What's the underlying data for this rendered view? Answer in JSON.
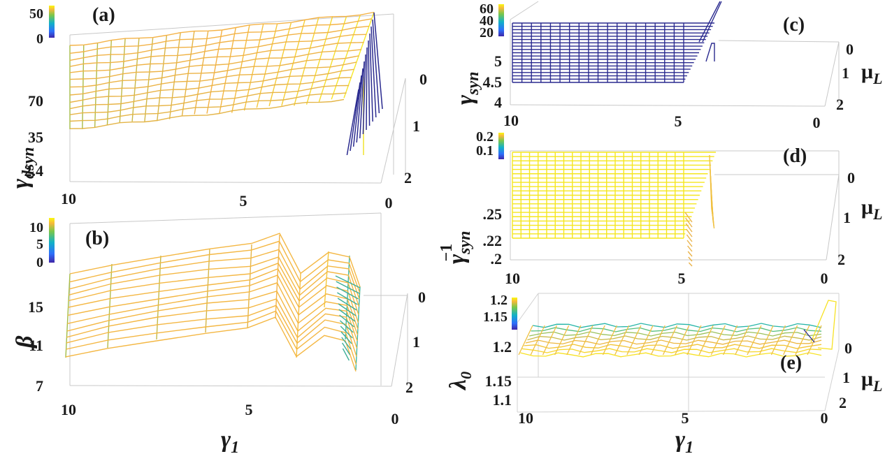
{
  "x_axis": {
    "name": "γ",
    "subscript": "1"
  },
  "mu_axis": {
    "name": "μ",
    "subscript": "L"
  },
  "chart_data": [
    {
      "panel": "(a)",
      "type": "surface",
      "zlabel": {
        "name": "γ",
        "subscript": "dsyn"
      },
      "ztick_labels": [
        "70",
        "35",
        "2.4"
      ],
      "xtick_labels": [
        "10",
        "5",
        "0"
      ],
      "mutick_labels": [
        "0",
        "1",
        "2"
      ],
      "colorbar": {
        "labels": [
          "50",
          "0"
        ]
      }
    },
    {
      "panel": "(b)",
      "type": "surface",
      "zlabel": {
        "name": "β",
        "subscript": ""
      },
      "ztick_labels": [
        "15",
        "11",
        "7"
      ],
      "xtick_labels": [
        "10",
        "5",
        "0"
      ],
      "mutick_labels": [
        "0",
        "1",
        "2"
      ],
      "colorbar": {
        "labels": [
          "10",
          "5",
          "0"
        ]
      }
    },
    {
      "panel": "(c)",
      "type": "surface",
      "zlabel": {
        "name": "γ",
        "subscript": "syn"
      },
      "ztick_labels": [
        "5",
        "4.5",
        "4"
      ],
      "xtick_labels": [
        "10",
        "5",
        "0"
      ],
      "mutick_labels": [
        "0",
        "1",
        "2"
      ],
      "colorbar": {
        "labels": [
          "60",
          "40",
          "20"
        ]
      }
    },
    {
      "panel": "(d)",
      "type": "surface",
      "zlabel": {
        "name": "γ",
        "subscript": "syn",
        "superscript": "−1"
      },
      "ztick_labels": [
        ".25",
        ".22",
        ".2"
      ],
      "xtick_labels": [
        "10",
        "5",
        "0"
      ],
      "mutick_labels": [
        "0",
        "1",
        "2"
      ],
      "colorbar": {
        "labels": [
          "0.2",
          "0.1"
        ]
      }
    },
    {
      "panel": "(e)",
      "type": "surface",
      "zlabel": {
        "name": "λ",
        "subscript": "0"
      },
      "ztick_labels": [
        "1.2",
        "1.15",
        "1.1"
      ],
      "xtick_labels": [
        "10",
        "5",
        "0"
      ],
      "mutick_labels": [
        "0",
        "1",
        "2"
      ],
      "colorbar": {
        "labels": [
          "1.2",
          "1.15"
        ]
      }
    }
  ]
}
